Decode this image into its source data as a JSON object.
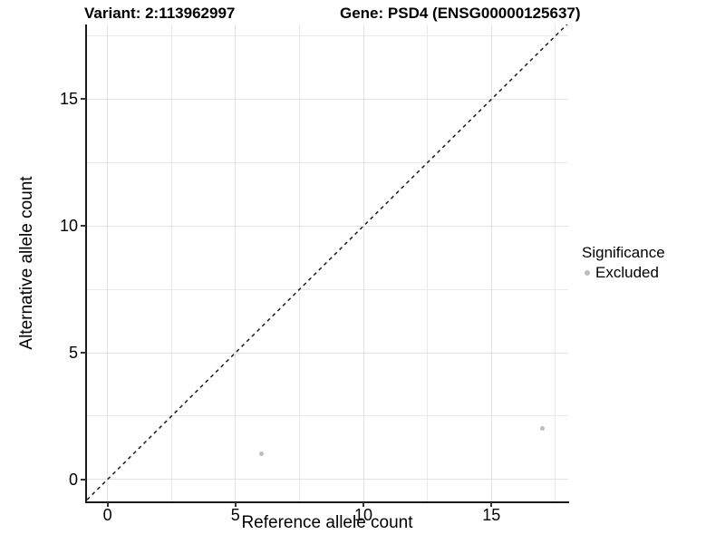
{
  "chart_data": {
    "type": "scatter",
    "title_left": "Variant: 2:113962997",
    "title_right": "Gene: PSD4 (ENSG00000125637)",
    "xlabel": "Reference allele count",
    "ylabel": "Alternative allele count",
    "xlim": [
      -0.8,
      18.0
    ],
    "ylim": [
      -0.9,
      17.95
    ],
    "x_ticks": [
      0,
      5,
      10,
      15
    ],
    "y_ticks": [
      0,
      5,
      10,
      15
    ],
    "x_minor_gridlines": [
      2.5,
      7.5,
      12.5,
      17.5
    ],
    "y_minor_gridlines": [
      2.5,
      7.5,
      12.5,
      17.5
    ],
    "grid": true,
    "legend_position": "right",
    "points": [
      {
        "x": 6,
        "y": 1,
        "series": "Excluded"
      },
      {
        "x": 17,
        "y": 2,
        "series": "Excluded"
      }
    ],
    "abline": {
      "slope": 1,
      "intercept": 0,
      "style": "dashed"
    },
    "legend": {
      "title": "Significance",
      "entries": [
        {
          "label": "Excluded",
          "color": "#bdbdbd"
        }
      ]
    }
  },
  "colors": {
    "point": "#bdbdbd",
    "abline": "#1a1a1a",
    "grid_major": "#e2e2e2",
    "grid_minor": "#e9e9e9",
    "axis_line": "#1a1a1a"
  }
}
